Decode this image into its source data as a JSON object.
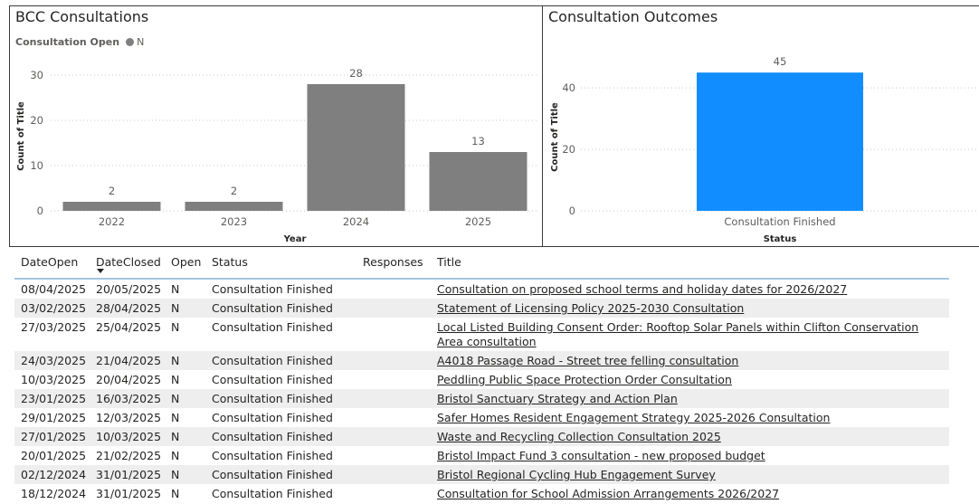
{
  "left_chart": {
    "title": "BCC Consultations",
    "legend_label": "Consultation Open",
    "legend_value": "N",
    "colors": {
      "bar": "#7f7f7f"
    }
  },
  "right_chart": {
    "title": "Consultation Outcomes",
    "colors": {
      "bar": "#118dff"
    }
  },
  "chart_data": [
    {
      "type": "bar",
      "title": "BCC Consultations",
      "categories": [
        "2022",
        "2023",
        "2024",
        "2025"
      ],
      "values": [
        2,
        2,
        28,
        13
      ],
      "xlabel": "Year",
      "ylabel": "Count of Title",
      "ylim": [
        0,
        33
      ],
      "yticks": [
        0,
        10,
        20,
        30
      ],
      "grid": true,
      "legend": "top-left"
    },
    {
      "type": "bar",
      "title": "Consultation Outcomes",
      "categories": [
        "Consultation Finished"
      ],
      "values": [
        45
      ],
      "xlabel": "Status",
      "ylabel": "Count of Title",
      "ylim": [
        0,
        48
      ],
      "yticks": [
        0,
        20,
        40
      ],
      "grid": true
    }
  ],
  "table": {
    "columns": [
      "DateOpen",
      "DateClosed",
      "Open",
      "Status",
      "Responses",
      "Title"
    ],
    "rows": [
      [
        "08/04/2025",
        "20/05/2025",
        "N",
        "Consultation Finished",
        "",
        "Consultation on proposed school terms and holiday dates for 2026/2027"
      ],
      [
        "03/02/2025",
        "28/04/2025",
        "N",
        "Consultation Finished",
        "",
        "Statement of Licensing Policy 2025-2030 Consultation"
      ],
      [
        "27/03/2025",
        "25/04/2025",
        "N",
        "Consultation Finished",
        "",
        "Local Listed Building Consent Order: Rooftop Solar Panels within Clifton Conservation Area consultation"
      ],
      [
        "24/03/2025",
        "21/04/2025",
        "N",
        "Consultation Finished",
        "",
        "A4018 Passage Road - Street tree felling consultation"
      ],
      [
        "10/03/2025",
        "20/04/2025",
        "N",
        "Consultation Finished",
        "",
        "Peddling Public Space Protection Order Consultation"
      ],
      [
        "23/01/2025",
        "16/03/2025",
        "N",
        "Consultation Finished",
        "",
        "Bristol Sanctuary Strategy and Action Plan"
      ],
      [
        "29/01/2025",
        "12/03/2025",
        "N",
        "Consultation Finished",
        "",
        "Safer Homes Resident Engagement Strategy 2025-2026 Consultation"
      ],
      [
        "27/01/2025",
        "10/03/2025",
        "N",
        "Consultation Finished",
        "",
        "Waste and Recycling Collection Consultation 2025"
      ],
      [
        "20/01/2025",
        "21/02/2025",
        "N",
        "Consultation Finished",
        "",
        "Bristol Impact Fund 3 consultation - new proposed budget"
      ],
      [
        "02/12/2024",
        "31/01/2025",
        "N",
        "Consultation Finished",
        "",
        "Bristol Regional Cycling Hub Engagement Survey"
      ],
      [
        "18/12/2024",
        "31/01/2025",
        "N",
        "Consultation Finished",
        "",
        "Consultation for School Admission Arrangements 2026/2027"
      ]
    ]
  }
}
